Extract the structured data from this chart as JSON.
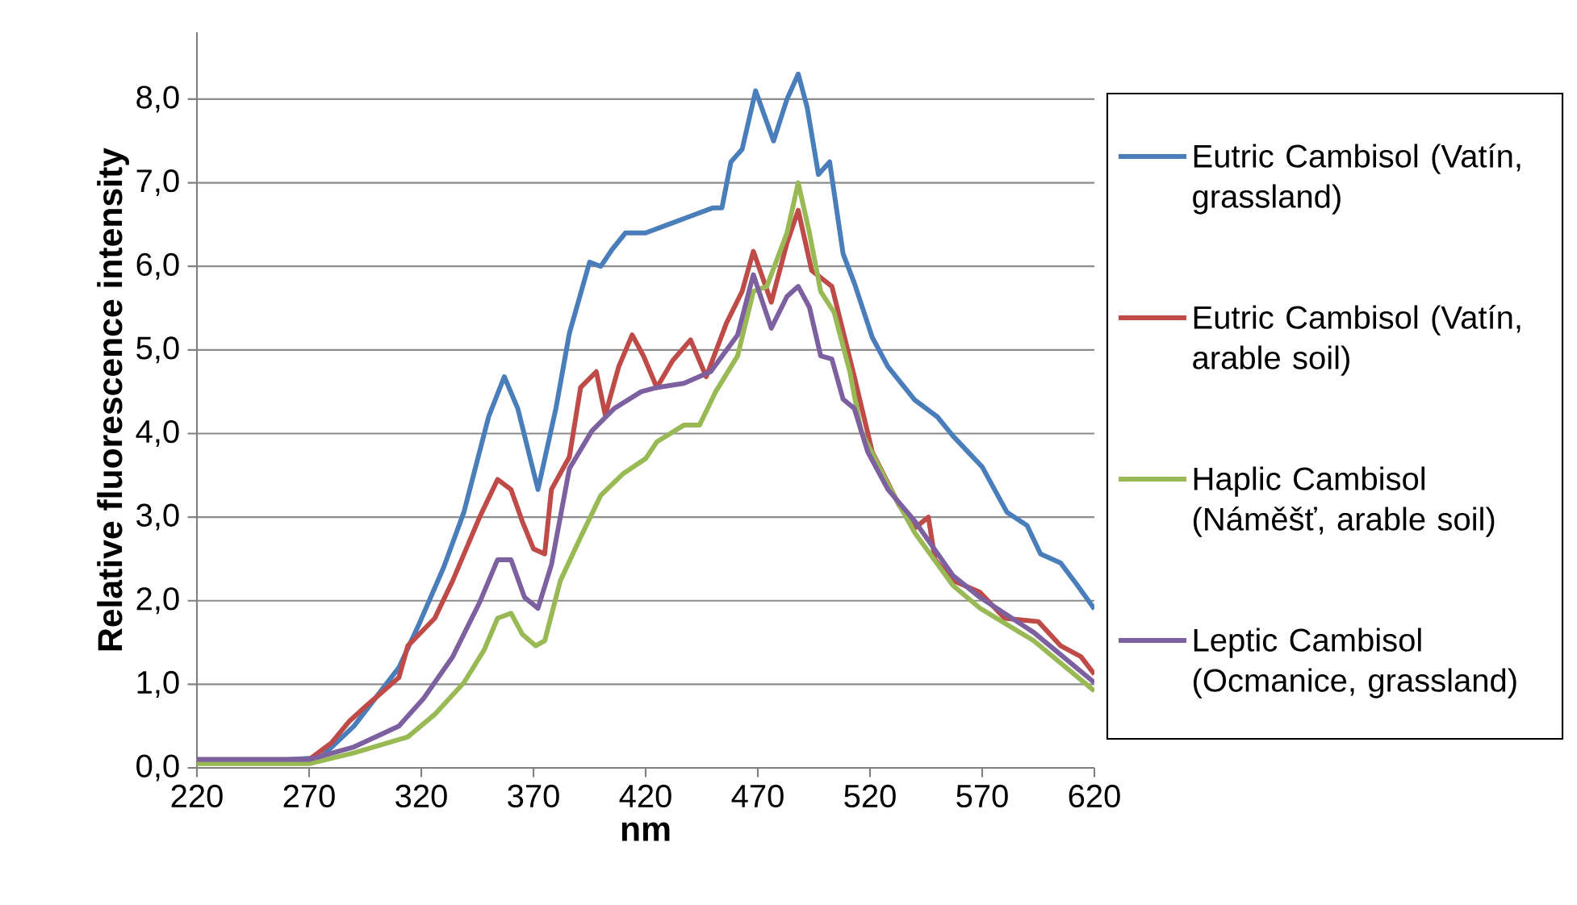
{
  "chart_data": {
    "type": "line",
    "xlabel": "nm",
    "ylabel": "Relative fluorescence intensity",
    "xlim": [
      220,
      620
    ],
    "ylim": [
      0,
      8.8
    ],
    "xticks": [
      220,
      270,
      320,
      370,
      420,
      470,
      520,
      570,
      620
    ],
    "yticks": [
      {
        "value": 0,
        "label": "0,0"
      },
      {
        "value": 1,
        "label": "1,0"
      },
      {
        "value": 2,
        "label": "2,0"
      },
      {
        "value": 3,
        "label": "3,0"
      },
      {
        "value": 4,
        "label": "4,0"
      },
      {
        "value": 5,
        "label": "5,0"
      },
      {
        "value": 6,
        "label": "6,0"
      },
      {
        "value": 7,
        "label": "7,0"
      },
      {
        "value": 8,
        "label": "8,0"
      }
    ],
    "grid": "y",
    "legend": "right",
    "series": [
      {
        "name": "Eutric Cambisol (Vatín, grassland)",
        "color": "#4a7ebb",
        "x": [
          220,
          260,
          275,
          290,
          300,
          310,
          319,
          330,
          339,
          350,
          357,
          363,
          372,
          380,
          386,
          395,
          400,
          405,
          411,
          420,
          430,
          440,
          450,
          454,
          458,
          463,
          469,
          477,
          483,
          488,
          492,
          497,
          502,
          508,
          513,
          521,
          528,
          540,
          550,
          557,
          570,
          581,
          590,
          596,
          605,
          612,
          620
        ],
        "values": [
          0.1,
          0.1,
          0.12,
          0.5,
          0.85,
          1.2,
          1.72,
          2.4,
          3.06,
          4.2,
          4.68,
          4.3,
          3.33,
          4.3,
          5.2,
          6.05,
          6.0,
          6.2,
          6.4,
          6.4,
          6.5,
          6.6,
          6.7,
          6.7,
          7.25,
          7.4,
          8.1,
          7.5,
          8.0,
          8.3,
          7.9,
          7.1,
          7.25,
          6.15,
          5.8,
          5.15,
          4.8,
          4.4,
          4.2,
          3.97,
          3.6,
          3.06,
          2.9,
          2.56,
          2.45,
          2.2,
          1.9
        ]
      },
      {
        "name": "Eutric Cambisol (Vatín, arable soil)",
        "color": "#be4b48",
        "x": [
          220,
          270,
          280,
          288,
          295,
          310,
          314,
          326,
          334,
          346,
          354,
          360,
          365,
          370,
          375,
          378,
          386,
          391,
          398,
          402,
          408,
          414,
          419,
          425,
          432,
          440,
          447,
          456,
          463,
          468,
          476,
          483,
          488,
          494,
          503,
          513,
          521,
          533,
          540,
          546,
          549,
          557,
          569,
          580,
          595,
          605,
          614,
          620
        ],
        "values": [
          0.1,
          0.1,
          0.3,
          0.56,
          0.73,
          1.08,
          1.46,
          1.79,
          2.24,
          3.0,
          3.45,
          3.33,
          2.95,
          2.62,
          2.56,
          3.33,
          3.72,
          4.55,
          4.74,
          4.22,
          4.8,
          5.18,
          4.93,
          4.55,
          4.87,
          5.12,
          4.68,
          5.32,
          5.7,
          6.18,
          5.57,
          6.28,
          6.67,
          5.95,
          5.76,
          4.68,
          3.78,
          3.14,
          2.87,
          3.0,
          2.49,
          2.24,
          2.1,
          1.79,
          1.75,
          1.46,
          1.33,
          1.12
        ]
      },
      {
        "name": "Haplic Cambisol (Náměšť, arable soil)",
        "color": "#98b954",
        "x": [
          220,
          270,
          290,
          314,
          326,
          339,
          348,
          354,
          360,
          365,
          371,
          375,
          382,
          391,
          400,
          410,
          420,
          425,
          437,
          444,
          451,
          461,
          468,
          474,
          483,
          488,
          493,
          498,
          504,
          511,
          516,
          528,
          540,
          557,
          569,
          593,
          620
        ],
        "values": [
          0.05,
          0.05,
          0.18,
          0.37,
          0.64,
          1.02,
          1.41,
          1.79,
          1.85,
          1.6,
          1.46,
          1.52,
          2.24,
          2.76,
          3.26,
          3.52,
          3.7,
          3.9,
          4.1,
          4.1,
          4.49,
          4.93,
          5.7,
          5.76,
          6.4,
          7.0,
          6.4,
          5.7,
          5.45,
          4.74,
          4.03,
          3.39,
          2.81,
          2.18,
          1.91,
          1.52,
          0.92
        ]
      },
      {
        "name": "Leptic Cambisol (Ocmanice, grassland)",
        "color": "#7d60a0",
        "x": [
          220,
          270,
          290,
          310,
          321,
          334,
          346,
          354,
          360,
          366,
          372,
          378,
          386,
          396,
          406,
          418,
          425,
          437,
          449,
          461,
          468,
          476,
          483,
          488,
          493,
          498,
          503,
          508,
          513,
          519,
          528,
          540,
          557,
          569,
          593,
          620
        ],
        "values": [
          0.1,
          0.1,
          0.25,
          0.5,
          0.83,
          1.33,
          1.98,
          2.49,
          2.49,
          2.04,
          1.91,
          2.43,
          3.58,
          4.03,
          4.3,
          4.5,
          4.55,
          4.6,
          4.74,
          5.18,
          5.9,
          5.26,
          5.64,
          5.76,
          5.51,
          4.93,
          4.89,
          4.41,
          4.3,
          3.78,
          3.33,
          2.95,
          2.3,
          2.04,
          1.62,
          1.02
        ]
      }
    ]
  }
}
